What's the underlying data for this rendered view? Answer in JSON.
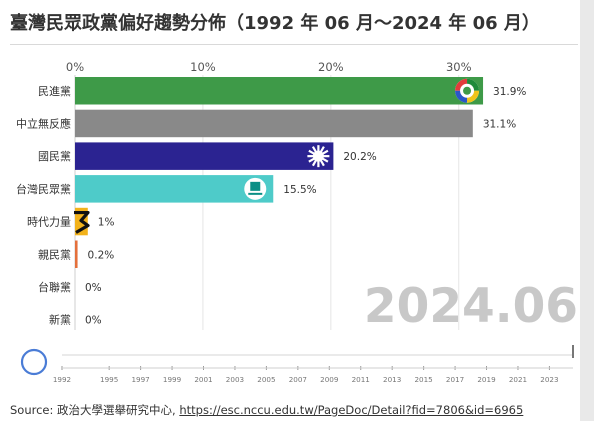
{
  "title": "臺灣民眾政黨偏好趨勢分佈（1992 年 06 月～2024 年 06 月）",
  "period_label": "2024.06",
  "colors": {
    "background": "#ffffff",
    "grid": "#e6e6e6",
    "period_label": "#c8c8c8",
    "timeline": "#4a7cd6"
  },
  "chart_data": {
    "type": "bar",
    "orientation": "horizontal",
    "title": "臺灣民眾政黨偏好趨勢分佈（1992 年 06 月～2024 年 06 月）",
    "xlim": [
      0,
      32.6
    ],
    "xticks": [
      0,
      10,
      20,
      30
    ],
    "xtick_labels": [
      "0%",
      "10%",
      "20%",
      "30%"
    ],
    "categories": [
      "民進黨",
      "中立無反應",
      "國民黨",
      "台灣民眾黨",
      "時代力量",
      "親民黨",
      "台聯黨",
      "新黨"
    ],
    "values": [
      31.9,
      31.1,
      20.2,
      15.5,
      1,
      0.2,
      0,
      0
    ],
    "value_labels": [
      "31.9%",
      "31.1%",
      "20.2%",
      "15.5%",
      "1%",
      "0.2%",
      "0%",
      "0%"
    ],
    "bar_colors": [
      "#3e9a48",
      "#898989",
      "#2b2391",
      "#4ecbc9",
      "#f2b21b",
      "#e4703c",
      "#a6c84f",
      "#f3d33a"
    ],
    "icons": [
      "dpp-logo-icon",
      "",
      "kmt-sun-icon",
      "tpp-logo-icon",
      "npp-logo-icon",
      "",
      "",
      ""
    ],
    "grid": true
  },
  "timeline": {
    "years": [
      "1992",
      "1995",
      "1997",
      "1999",
      "2001",
      "2003",
      "2005",
      "2007",
      "2009",
      "2011",
      "2013",
      "2015",
      "2017",
      "2019",
      "2021",
      "2023"
    ],
    "start": 1992,
    "end": 2024.5,
    "current": 2024.5
  },
  "source": {
    "prefix": "Source: 政治大學選舉研究中心, ",
    "link_text": "https://esc.nccu.edu.tw/PageDoc/Detail?fid=7806&id=6965"
  }
}
